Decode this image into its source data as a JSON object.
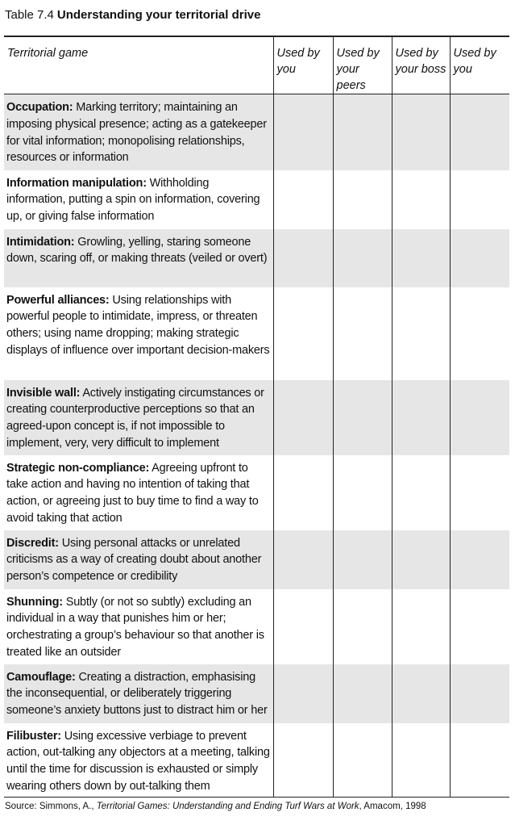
{
  "header": {
    "label": "Table 7.4",
    "title": "Understanding your territorial drive"
  },
  "table": {
    "columns": [
      "Territorial game",
      "Used by you",
      "Used by your peers",
      "Used by your boss",
      "Used by you"
    ],
    "rows": [
      {
        "term": "Occupation:",
        "description": "Marking territory; maintaining an imposing physical presence; acting as a gatekeeper for vital information; monopolising relationships, resources or information"
      },
      {
        "term": "Information manipulation:",
        "description": "Withholding information, putting a spin on information, covering up, or giving false information"
      },
      {
        "term": "Intimidation:",
        "description": "Growling, yelling, staring someone down, scaring off, or making threats (veiled or overt)"
      },
      {
        "term": "Powerful alliances:",
        "description": "Using relationships with powerful people to intimidate, impress, or threaten others; using name dropping; making strategic displays of influence over important decision-makers"
      },
      {
        "term": "Invisible wall:",
        "description": "Actively instigating circumstances or creating counterproductive perceptions so that an agreed-upon concept is, if not impossible to implement, very, very difficult to implement"
      },
      {
        "term": "Strategic non-compliance:",
        "description": "Agreeing upfront to take action and having no intention of taking that action, or agreeing just to buy time to find a way to avoid taking that action"
      },
      {
        "term": "Discredit:",
        "description": "Using personal attacks or unrelated criticisms as a way of creating doubt about another person’s competence or credibility"
      },
      {
        "term": "Shunning:",
        "description": "Subtly (or not so subtly) excluding an individual in a way that punishes him or her; orchestrating a group’s behaviour so that another is treated like an outsider"
      },
      {
        "term": "Camouflage:",
        "description": "Creating a distraction, emphasising the inconsequential, or deliberately triggering someone’s anxiety buttons just to distract him or her"
      },
      {
        "term": "Filibuster:",
        "description": "Using excessive verbiage to prevent action, out-talking any objectors at a meeting, talking until the time for discussion is exhausted or simply wearing others down by out-talking them"
      }
    ]
  },
  "source": {
    "prefix": "Source: Simmons, A.,",
    "book": "Territorial Games: Understanding and Ending Turf Wars at Work",
    "suffix": ", Amacom, 1998"
  }
}
